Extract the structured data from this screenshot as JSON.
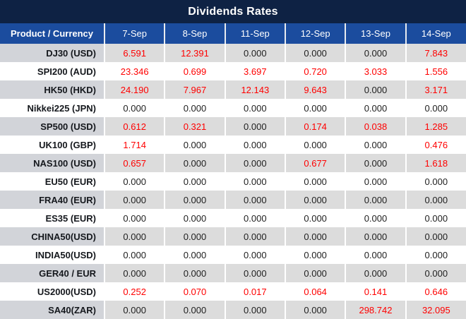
{
  "title": "Dividends Rates",
  "colors": {
    "title_bar_bg": "#0e2244",
    "header_bg": "#1b4c9e",
    "header_text": "#ffffff",
    "row_gray_label_bg": "#d2d4d9",
    "row_gray_value_bg": "#dcdcdc",
    "row_white_bg": "#ffffff",
    "zero_value_text": "#212121",
    "nonzero_value_text": "#ff0000"
  },
  "chart_data": {
    "type": "table",
    "title": "Dividends Rates",
    "columns": [
      "Product / Currency",
      "7-Sep",
      "8-Sep",
      "11-Sep",
      "12-Sep",
      "13-Sep",
      "14-Sep"
    ],
    "rows": [
      {
        "product": "DJ30 (USD)",
        "values": [
          "6.591",
          "12.391",
          "0.000",
          "0.000",
          "0.000",
          "7.843"
        ]
      },
      {
        "product": "SPI200 (AUD)",
        "values": [
          "23.346",
          "0.699",
          "3.697",
          "0.720",
          "3.033",
          "1.556"
        ]
      },
      {
        "product": "HK50 (HKD)",
        "values": [
          "24.190",
          "7.967",
          "12.143",
          "9.643",
          "0.000",
          "3.171"
        ]
      },
      {
        "product": "Nikkei225 (JPN)",
        "values": [
          "0.000",
          "0.000",
          "0.000",
          "0.000",
          "0.000",
          "0.000"
        ]
      },
      {
        "product": "SP500 (USD)",
        "values": [
          "0.612",
          "0.321",
          "0.000",
          "0.174",
          "0.038",
          "1.285"
        ]
      },
      {
        "product": "UK100 (GBP)",
        "values": [
          "1.714",
          "0.000",
          "0.000",
          "0.000",
          "0.000",
          "0.476"
        ]
      },
      {
        "product": "NAS100 (USD)",
        "values": [
          "0.657",
          "0.000",
          "0.000",
          "0.677",
          "0.000",
          "1.618"
        ]
      },
      {
        "product": "EU50 (EUR)",
        "values": [
          "0.000",
          "0.000",
          "0.000",
          "0.000",
          "0.000",
          "0.000"
        ]
      },
      {
        "product": "FRA40 (EUR)",
        "values": [
          "0.000",
          "0.000",
          "0.000",
          "0.000",
          "0.000",
          "0.000"
        ]
      },
      {
        "product": "ES35 (EUR)",
        "values": [
          "0.000",
          "0.000",
          "0.000",
          "0.000",
          "0.000",
          "0.000"
        ]
      },
      {
        "product": "CHINA50(USD)",
        "values": [
          "0.000",
          "0.000",
          "0.000",
          "0.000",
          "0.000",
          "0.000"
        ]
      },
      {
        "product": "INDIA50(USD)",
        "values": [
          "0.000",
          "0.000",
          "0.000",
          "0.000",
          "0.000",
          "0.000"
        ]
      },
      {
        "product": "GER40 / EUR",
        "values": [
          "0.000",
          "0.000",
          "0.000",
          "0.000",
          "0.000",
          "0.000"
        ]
      },
      {
        "product": "US2000(USD)",
        "values": [
          "0.252",
          "0.070",
          "0.017",
          "0.064",
          "0.141",
          "0.646"
        ]
      },
      {
        "product": "SA40(ZAR)",
        "values": [
          "0.000",
          "0.000",
          "0.000",
          "0.000",
          "298.742",
          "32.095"
        ]
      }
    ]
  }
}
